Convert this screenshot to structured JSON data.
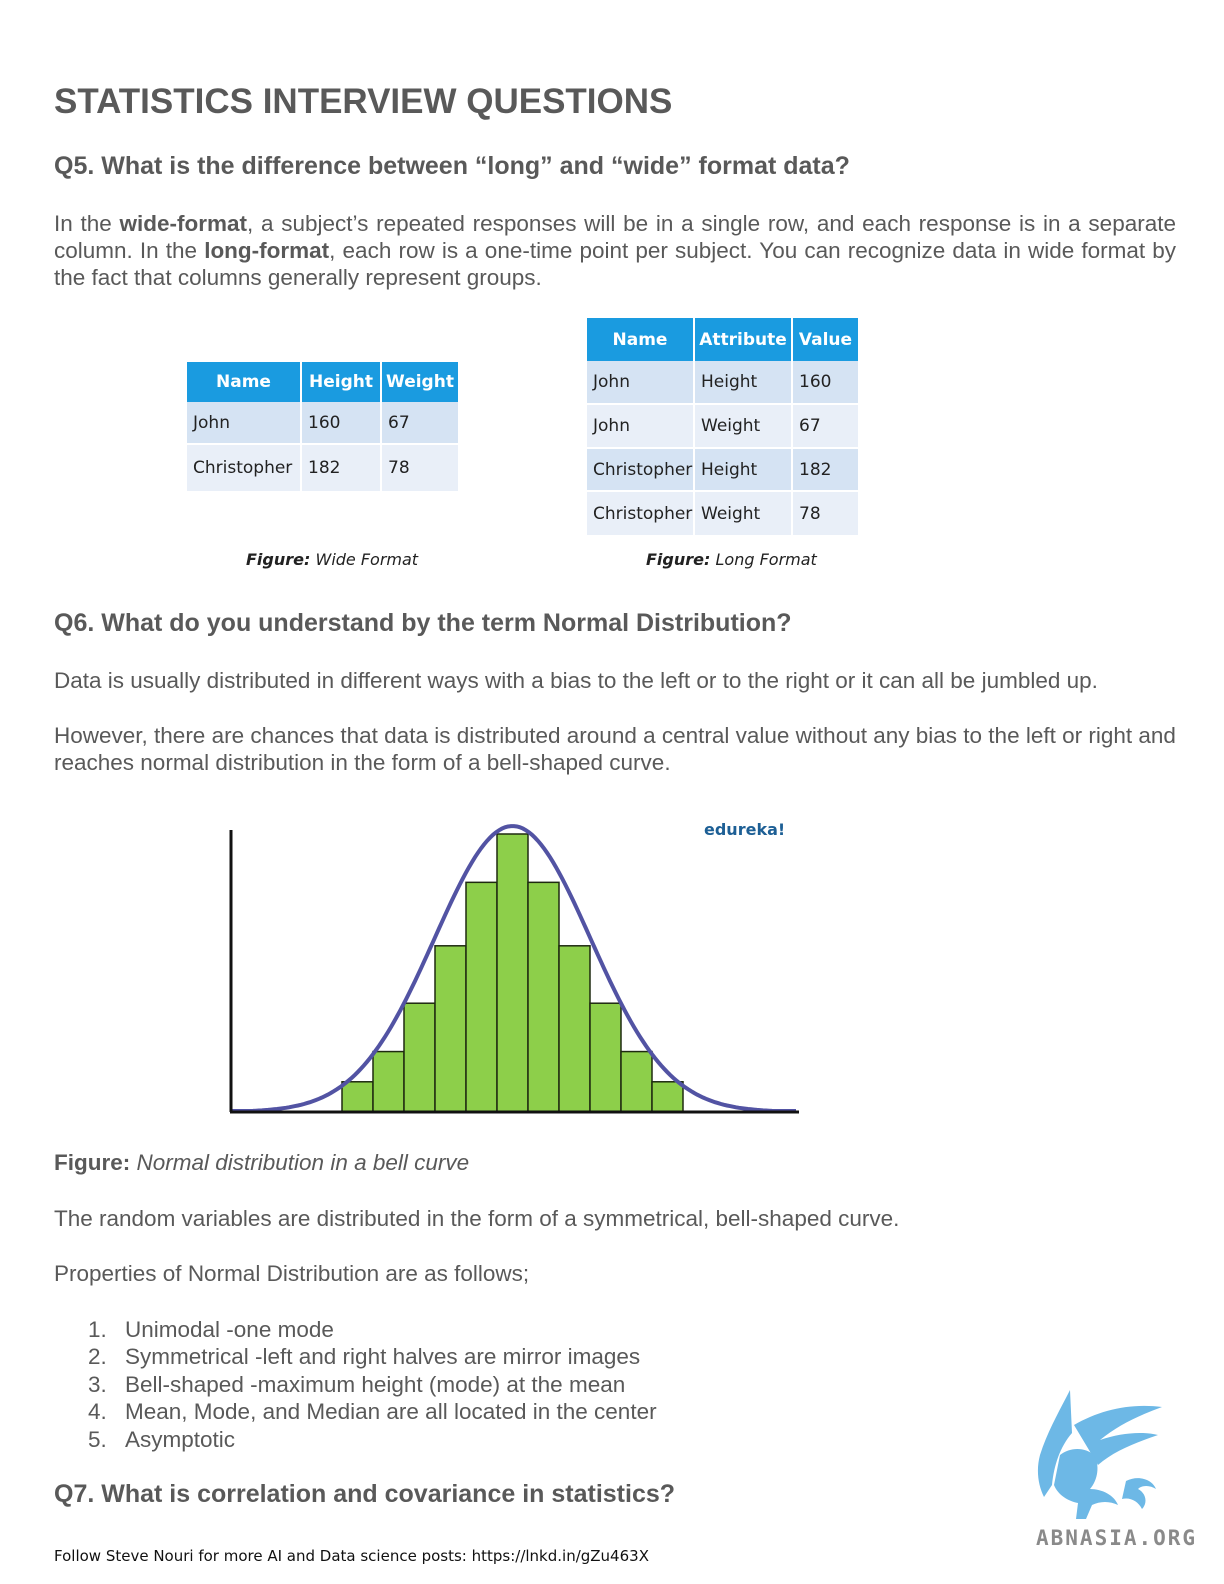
{
  "title": "STATISTICS INTERVIEW QUESTIONS",
  "q5": {
    "heading": "Q5. What is the difference between “long” and “wide” format data?",
    "p1_a": "In the ",
    "p1_b": "wide-format",
    "p1_c": ", a subject’s repeated responses will be in a single row, and each response is in a separate column. In the ",
    "p1_d": "long-format",
    "p1_e": ", each row is a one-time point per subject. You can recognize data in wide format by the fact that columns generally represent groups."
  },
  "wide_table": {
    "headers": [
      "Name",
      "Height",
      "Weight"
    ],
    "rows": [
      [
        "John",
        "160",
        "67"
      ],
      [
        "Christopher",
        "182",
        "78"
      ]
    ],
    "caption_label": "Figure:",
    "caption_text": " Wide Format"
  },
  "long_table": {
    "headers": [
      "Name",
      "Attribute",
      "Value"
    ],
    "rows": [
      [
        "John",
        "Height",
        "160"
      ],
      [
        "John",
        "Weight",
        "67"
      ],
      [
        "Christopher",
        "Height",
        "182"
      ],
      [
        "Christopher",
        "Weight",
        "78"
      ]
    ],
    "caption_label": "Figure:",
    "caption_text": " Long Format"
  },
  "q6": {
    "heading": "Q6. What do you understand by the term Normal Distribution?",
    "p1": "Data is usually distributed in different ways with a bias to the left or to the right or it can all be jumbled up.",
    "p2": "However, there are chances that data is distributed around a central value without any bias to the left or right and reaches normal distribution in the form of a bell-shaped curve.",
    "figure_label": "Figure:",
    "figure_text": " Normal distribution in a bell curve",
    "p3": "The random variables are distributed in the form of a symmetrical, bell-shaped curve.",
    "p4": "Properties of Normal Distribution are as follows;",
    "properties": [
      {
        "num": "1.",
        "text": "Unimodal -one mode"
      },
      {
        "num": "2.",
        "text": "Symmetrical -left and right halves are mirror images"
      },
      {
        "num": "3.",
        "text": "Bell-shaped -maximum height (mode) at the mean"
      },
      {
        "num": "4.",
        "text": "Mean, Mode, and Median are all located in the center"
      },
      {
        "num": "5.",
        "text": "Asymptotic"
      }
    ]
  },
  "chart_data": {
    "type": "bar",
    "watermark": "edureka!",
    "values": [
      1,
      2,
      3.6,
      5.5,
      7.6,
      9.2,
      7.6,
      5.5,
      3.6,
      2,
      1
    ],
    "curve": "normal",
    "colors": {
      "bars": "#8dcf4a",
      "curve": "#5253a3",
      "axis": "#111111"
    }
  },
  "q7": {
    "heading": "Q7. What is correlation and covariance in statistics?"
  },
  "footer": "Follow Steve Nouri for more AI and Data science posts: https://lnkd.in/gZu463X",
  "logo": {
    "text": "ABNASIA.ORG",
    "color": "#6db8e6"
  }
}
